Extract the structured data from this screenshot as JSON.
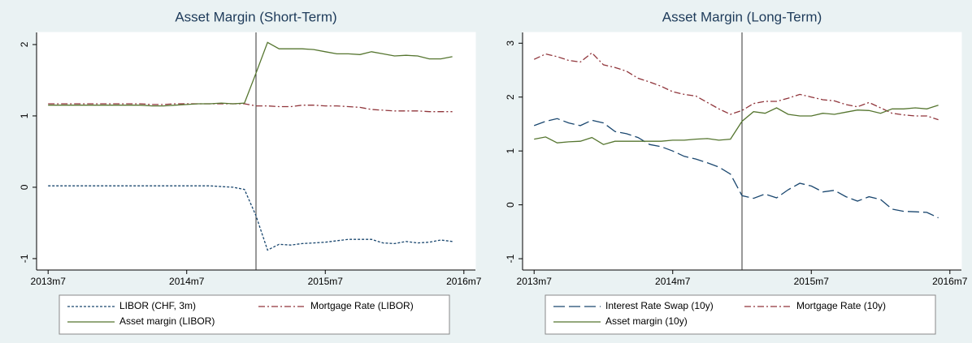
{
  "chart_data": [
    {
      "type": "line",
      "title": "Asset Margin (Short-Term)",
      "x": [
        642,
        643,
        644,
        645,
        646,
        647,
        648,
        649,
        650,
        651,
        652,
        653,
        654,
        655,
        656,
        657,
        658,
        659,
        660,
        661,
        662,
        663,
        664,
        665,
        666,
        667,
        668,
        669,
        670,
        671,
        672,
        673,
        674,
        675,
        676,
        677
      ],
      "xlim": [
        641,
        679
      ],
      "xticks": [
        {
          "value": 642,
          "label": "2013m7"
        },
        {
          "value": 654,
          "label": "2014m7"
        },
        {
          "value": 666,
          "label": "2015m7"
        },
        {
          "value": 678,
          "label": "2016m7"
        }
      ],
      "ylim": [
        -1.16,
        2.17
      ],
      "yticks": [
        -1,
        0,
        1,
        2
      ],
      "vline": 660,
      "series": [
        {
          "name": "LIBOR (CHF, 3m)",
          "color": "#1a476f",
          "dash": "dash",
          "values": [
            0.02,
            0.02,
            0.02,
            0.02,
            0.02,
            0.02,
            0.02,
            0.02,
            0.02,
            0.02,
            0.02,
            0.02,
            0.02,
            0.02,
            0.02,
            0.01,
            0.0,
            -0.03,
            -0.4,
            -0.88,
            -0.8,
            -0.81,
            -0.79,
            -0.78,
            -0.77,
            -0.75,
            -0.73,
            -0.73,
            -0.73,
            -0.78,
            -0.79,
            -0.76,
            -0.78,
            -0.77,
            -0.74,
            -0.76
          ]
        },
        {
          "name": "Mortgage Rate (LIBOR)",
          "color": "#90353b",
          "dash": "dashdot",
          "values": [
            1.17,
            1.17,
            1.17,
            1.17,
            1.17,
            1.17,
            1.17,
            1.17,
            1.17,
            1.16,
            1.16,
            1.17,
            1.17,
            1.17,
            1.17,
            1.17,
            1.17,
            1.17,
            1.14,
            1.14,
            1.13,
            1.13,
            1.15,
            1.15,
            1.14,
            1.14,
            1.13,
            1.12,
            1.09,
            1.08,
            1.07,
            1.07,
            1.07,
            1.06,
            1.06,
            1.06
          ]
        },
        {
          "name": "Asset margin (LIBOR)",
          "color": "#55752f",
          "dash": "solid",
          "values": [
            1.15,
            1.15,
            1.15,
            1.15,
            1.15,
            1.15,
            1.15,
            1.15,
            1.15,
            1.14,
            1.14,
            1.15,
            1.16,
            1.17,
            1.17,
            1.18,
            1.17,
            1.18,
            1.6,
            2.03,
            1.94,
            1.94,
            1.94,
            1.93,
            1.9,
            1.87,
            1.87,
            1.86,
            1.9,
            1.87,
            1.84,
            1.85,
            1.84,
            1.8,
            1.8,
            1.83
          ]
        }
      ]
    },
    {
      "type": "line",
      "title": "Asset Margin (Long-Term)",
      "x": [
        642,
        643,
        644,
        645,
        646,
        647,
        648,
        649,
        650,
        651,
        652,
        653,
        654,
        655,
        656,
        657,
        658,
        659,
        660,
        661,
        662,
        663,
        664,
        665,
        666,
        667,
        668,
        669,
        670,
        671,
        672,
        673,
        674,
        675,
        676,
        677
      ],
      "xlim": [
        641,
        679
      ],
      "xticks": [
        {
          "value": 642,
          "label": "2013m7"
        },
        {
          "value": 654,
          "label": "2014m7"
        },
        {
          "value": 666,
          "label": "2015m7"
        },
        {
          "value": 678,
          "label": "2016m7"
        }
      ],
      "ylim": [
        -1.21,
        3.2
      ],
      "yticks": [
        -1,
        0,
        1,
        2,
        3
      ],
      "vline": 660,
      "series": [
        {
          "name": "Interest Rate Swap (10y)",
          "color": "#1a476f",
          "dash": "longdash",
          "values": [
            1.47,
            1.55,
            1.6,
            1.52,
            1.47,
            1.57,
            1.52,
            1.36,
            1.32,
            1.25,
            1.12,
            1.08,
            1.0,
            0.9,
            0.85,
            0.78,
            0.7,
            0.57,
            0.17,
            0.12,
            0.2,
            0.13,
            0.28,
            0.4,
            0.35,
            0.24,
            0.27,
            0.15,
            0.07,
            0.15,
            0.1,
            -0.08,
            -0.12,
            -0.13,
            -0.14,
            -0.24
          ]
        },
        {
          "name": "Mortgage Rate (10y)",
          "color": "#90353b",
          "dash": "dashdot",
          "values": [
            2.7,
            2.8,
            2.75,
            2.68,
            2.65,
            2.82,
            2.6,
            2.55,
            2.48,
            2.35,
            2.28,
            2.2,
            2.1,
            2.05,
            2.02,
            1.9,
            1.78,
            1.68,
            1.75,
            1.88,
            1.92,
            1.92,
            1.98,
            2.05,
            2.0,
            1.95,
            1.93,
            1.86,
            1.82,
            1.9,
            1.8,
            1.7,
            1.67,
            1.65,
            1.65,
            1.58
          ]
        },
        {
          "name": "Asset margin (10y)",
          "color": "#55752f",
          "dash": "solid",
          "values": [
            1.22,
            1.26,
            1.15,
            1.17,
            1.18,
            1.25,
            1.12,
            1.18,
            1.18,
            1.18,
            1.18,
            1.18,
            1.2,
            1.2,
            1.22,
            1.23,
            1.2,
            1.22,
            1.55,
            1.73,
            1.7,
            1.8,
            1.68,
            1.65,
            1.65,
            1.7,
            1.68,
            1.72,
            1.76,
            1.75,
            1.7,
            1.78,
            1.78,
            1.8,
            1.78,
            1.85
          ]
        }
      ]
    }
  ]
}
